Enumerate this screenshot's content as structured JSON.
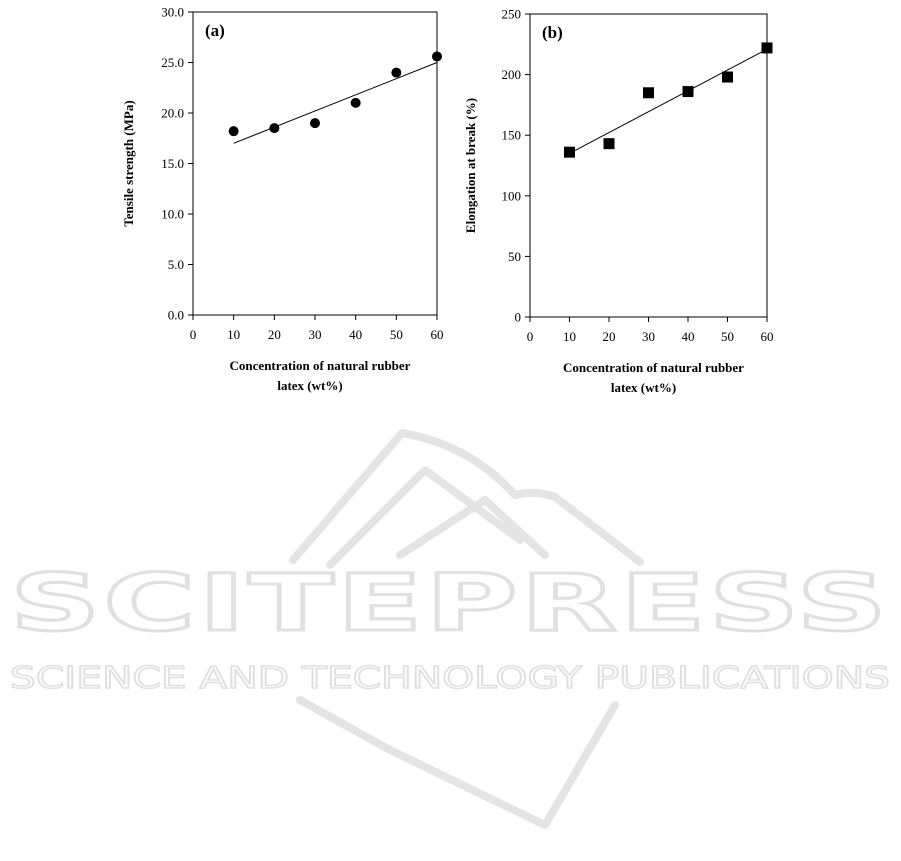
{
  "watermark": {
    "brand": "SCITEPRESS",
    "tagline": "SCIENCE AND TECHNOLOGY PUBLICATIONS",
    "color": "#e2e2e2"
  },
  "chart_data": [
    {
      "type": "scatter",
      "panel_label": "(a)",
      "xlabel_line1": "Concentration of natural rubber",
      "xlabel_line2": "latex (wt%)",
      "ylabel": "Tensile strength (MPa)",
      "xlim": [
        0,
        60
      ],
      "ylim": [
        0,
        30
      ],
      "xticks": [
        0,
        10,
        20,
        30,
        40,
        50,
        60
      ],
      "yticks": [
        0,
        5,
        10,
        15,
        20,
        25,
        30
      ],
      "ytick_labels": [
        "0.0",
        "5.0",
        "10.0",
        "15.0",
        "20.0",
        "25.0",
        "30.0"
      ],
      "marker": "circle",
      "series": [
        {
          "x": [
            10,
            20,
            30,
            40,
            50,
            60
          ],
          "y": [
            18.2,
            18.5,
            19.0,
            21.0,
            24.0,
            25.6
          ]
        }
      ],
      "trendline": {
        "x": [
          10,
          60
        ],
        "y": [
          17.0,
          25.0
        ]
      }
    },
    {
      "type": "scatter",
      "panel_label": "(b)",
      "xlabel_line1": "Concentration of natural rubber",
      "xlabel_line2": "latex (wt%)",
      "ylabel": "Elongation at break (%)",
      "xlim": [
        0,
        60
      ],
      "ylim": [
        0,
        250
      ],
      "xticks": [
        0,
        10,
        20,
        30,
        40,
        50,
        60
      ],
      "yticks": [
        0,
        50,
        100,
        150,
        200,
        250
      ],
      "ytick_labels": [
        "0",
        "50",
        "100",
        "150",
        "200",
        "250"
      ],
      "marker": "square",
      "series": [
        {
          "x": [
            10,
            20,
            30,
            40,
            50,
            60
          ],
          "y": [
            136,
            143,
            185,
            186,
            198,
            222
          ]
        }
      ],
      "trendline": {
        "x": [
          10,
          60
        ],
        "y": [
          135,
          221
        ]
      }
    }
  ]
}
